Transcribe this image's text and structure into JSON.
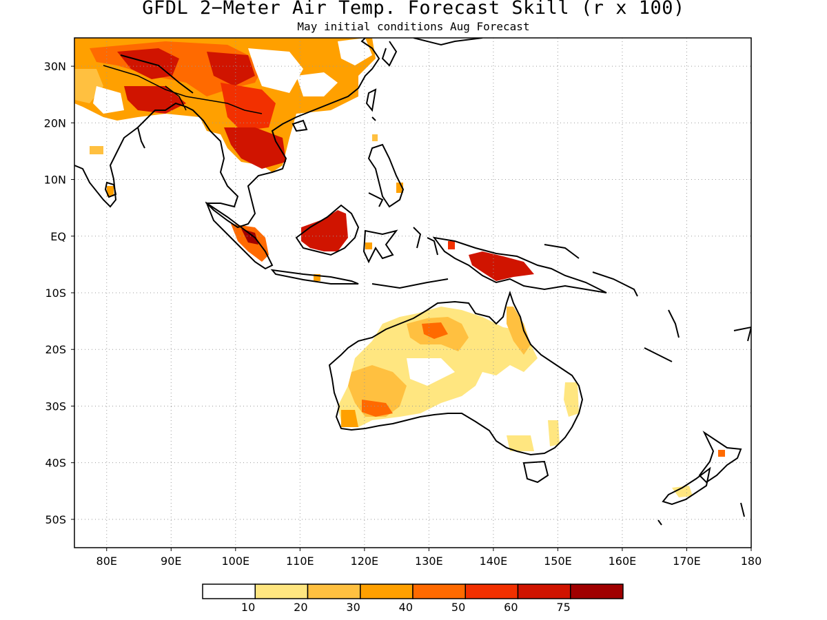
{
  "title": "GFDL 2−Meter Air Temp. Forecast Skill (r x 100)",
  "subtitle": "May initial conditions  Aug Forecast",
  "map": {
    "lon_range": [
      75,
      180
    ],
    "lat_range": [
      -55,
      35
    ],
    "grid": "dotted",
    "lon_ticks": [
      "80E",
      "90E",
      "100E",
      "110E",
      "120E",
      "130E",
      "140E",
      "150E",
      "160E",
      "170E",
      "180"
    ],
    "lat_ticks": [
      "30N",
      "20N",
      "10N",
      "EQ",
      "10S",
      "20S",
      "30S",
      "40S",
      "50S"
    ]
  },
  "colorbar": {
    "labels": [
      "10",
      "20",
      "30",
      "40",
      "50",
      "60",
      "75"
    ],
    "colors": [
      "#ffffff",
      "#ffe680",
      "#ffc040",
      "#ffa000",
      "#ff6a00",
      "#f23000",
      "#d01400",
      "#a00000"
    ]
  },
  "colors": {
    "c10": "#ffe680",
    "c20": "#ffc040",
    "c30": "#ffa000",
    "c40": "#ff6a00",
    "c50": "#f23000",
    "c60": "#d01400",
    "c75": "#a00000"
  }
}
